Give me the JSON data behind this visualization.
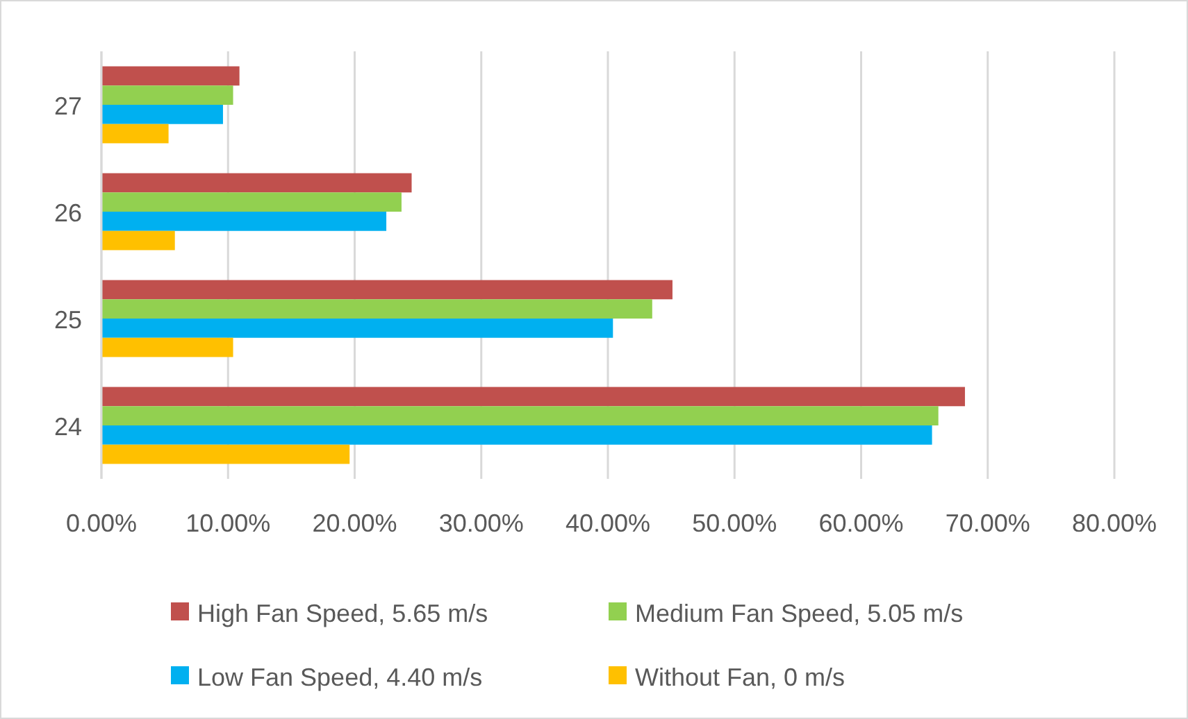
{
  "chart_data": {
    "type": "bar",
    "orientation": "horizontal",
    "categories": [
      "27",
      "26",
      "25",
      "24"
    ],
    "series": [
      {
        "name": "High Fan Speed, 5.65 m/s",
        "color": "#c0504d",
        "values": [
          10.9,
          24.5,
          45.1,
          68.2
        ]
      },
      {
        "name": "Medium Fan Speed, 5.05 m/s",
        "color": "#92d050",
        "values": [
          10.4,
          23.7,
          43.5,
          66.1
        ]
      },
      {
        "name": "Low Fan Speed, 4.40 m/s",
        "color": "#00b0f0",
        "values": [
          9.6,
          22.5,
          40.4,
          65.6
        ]
      },
      {
        "name": "Without Fan, 0 m/s",
        "color": "#ffc000",
        "values": [
          5.3,
          5.8,
          10.4,
          19.6
        ]
      }
    ],
    "xlim": [
      0,
      80
    ],
    "xticks": [
      {
        "value": 0,
        "label": "0.00%"
      },
      {
        "value": 10,
        "label": "10.00%"
      },
      {
        "value": 20,
        "label": "20.00%"
      },
      {
        "value": 30,
        "label": "30.00%"
      },
      {
        "value": 40,
        "label": "40.00%"
      },
      {
        "value": 50,
        "label": "50.00%"
      },
      {
        "value": 60,
        "label": "60.00%"
      },
      {
        "value": 70,
        "label": "70.00%"
      },
      {
        "value": 80,
        "label": "80.00%"
      }
    ],
    "grid": "x",
    "legend": "bottom"
  }
}
